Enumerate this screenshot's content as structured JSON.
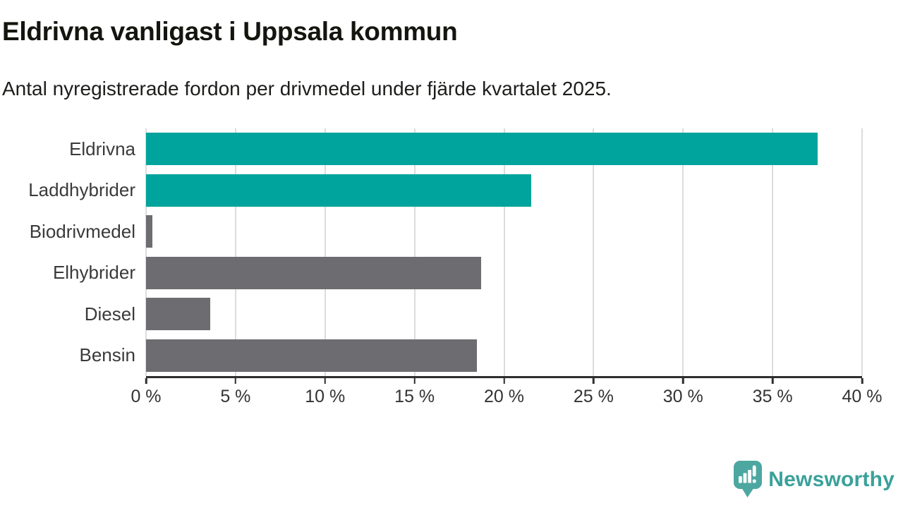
{
  "header": {
    "title": "Eldrivna vanligast i Uppsala kommun",
    "subtitle": "Antal nyregistrerade fordon per drivmedel under fjärde kvartalet 2025."
  },
  "chart_data": {
    "type": "bar",
    "orientation": "horizontal",
    "title": "Eldrivna vanligast i Uppsala kommun",
    "subtitle": "Antal nyregistrerade fordon per drivmedel under fjärde kvartalet 2025.",
    "categories": [
      "Eldrivna",
      "Laddhybrider",
      "Biodrivmedel",
      "Elhybrider",
      "Diesel",
      "Bensin"
    ],
    "values": [
      37.5,
      21.5,
      0.35,
      18.7,
      3.6,
      18.5
    ],
    "unit": "%",
    "series_colors": [
      "#00a49c",
      "#00a49c",
      "#6c6c71",
      "#6c6c71",
      "#6c6c71",
      "#6c6c71"
    ],
    "xlabel": "",
    "ylabel": "",
    "xlim": [
      0,
      40
    ],
    "x_ticks": [
      0,
      5,
      10,
      15,
      20,
      25,
      30,
      35,
      40
    ],
    "x_tick_labels": [
      "0 %",
      "5 %",
      "10 %",
      "15 %",
      "20 %",
      "25 %",
      "30 %",
      "35 %",
      "40 %"
    ],
    "grid": "vertical-gridlines-on",
    "legend": "none"
  },
  "colors": {
    "accent_teal": "#00a49c",
    "neutral_gray": "#6c6c71",
    "gridline": "#dcdcdc",
    "axis": "#2e2e2e",
    "text_dark": "#1d1d1b",
    "brand_teal": "#3aa19a"
  },
  "footer": {
    "brand_name": "Newsworthy",
    "logo_icon": "speech-bubble-bar-chart-icon"
  }
}
